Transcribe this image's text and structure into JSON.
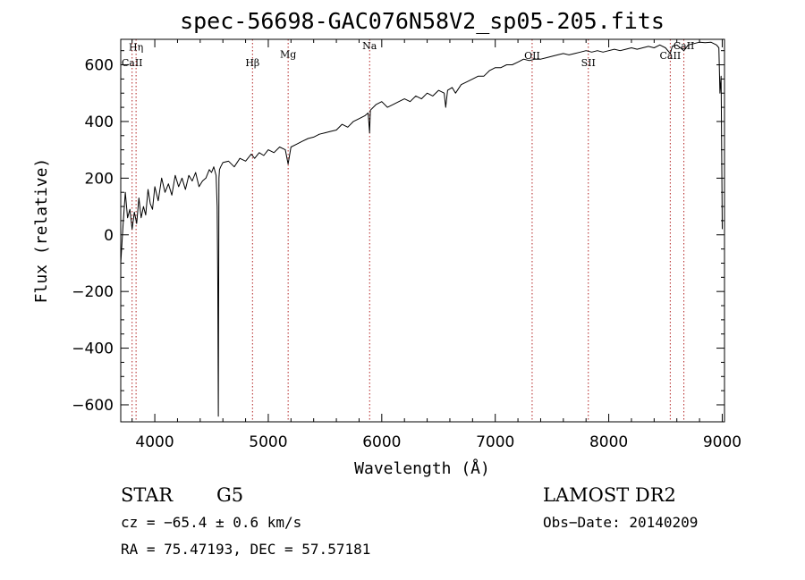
{
  "chart_data": {
    "type": "line",
    "title": "spec-56698-GAC076N58V2_sp05-205.fits",
    "xlabel": "Wavelength (Å)",
    "ylabel": "Flux (relative)",
    "xlim": [
      3700,
      9020
    ],
    "ylim": [
      -660,
      690
    ],
    "xticks": [
      4000,
      5000,
      6000,
      7000,
      8000,
      9000
    ],
    "yticks": [
      -600,
      -400,
      -200,
      0,
      200,
      400,
      600
    ],
    "grid": false,
    "line_color": "#000000",
    "marker_color": "#b22222",
    "lines": [
      {
        "label": "CaII",
        "x": 3800,
        "label_y": 595
      },
      {
        "label": "Hη",
        "x": 3835,
        "label_y": 650
      },
      {
        "label": "Hβ",
        "x": 4861,
        "label_y": 595
      },
      {
        "label": "Mg",
        "x": 5175,
        "label_y": 625
      },
      {
        "label": "Na",
        "x": 5893,
        "label_y": 655
      },
      {
        "label": "OII",
        "x": 7325,
        "label_y": 620
      },
      {
        "label": "SII",
        "x": 7820,
        "label_y": 595
      },
      {
        "label": "CaII",
        "x": 8542,
        "label_y": 620
      },
      {
        "label": "CaII",
        "x": 8662,
        "label_y": 655
      }
    ],
    "series": [
      {
        "x": [
          3700,
          3720,
          3740,
          3760,
          3780,
          3800,
          3820,
          3840,
          3860,
          3880,
          3900,
          3920,
          3940,
          3960,
          3980,
          4000,
          4030,
          4060,
          4090,
          4120,
          4150,
          4180,
          4210,
          4240,
          4270,
          4300,
          4330,
          4360,
          4390,
          4420,
          4450,
          4480,
          4500,
          4520,
          4540,
          4550,
          4555,
          4560,
          4565,
          4570,
          4580,
          4600,
          4650,
          4700,
          4750,
          4800,
          4850,
          4880,
          4920,
          4960,
          5000,
          5050,
          5100,
          5150,
          5175,
          5200,
          5250,
          5300,
          5350,
          5400,
          5450,
          5500,
          5550,
          5600,
          5650,
          5700,
          5750,
          5800,
          5850,
          5880,
          5893,
          5900,
          5950,
          6000,
          6050,
          6100,
          6150,
          6200,
          6250,
          6300,
          6350,
          6400,
          6450,
          6500,
          6550,
          6563,
          6580,
          6620,
          6650,
          6700,
          6750,
          6800,
          6850,
          6900,
          6950,
          7000,
          7050,
          7100,
          7150,
          7200,
          7250,
          7300,
          7350,
          7400,
          7450,
          7500,
          7550,
          7600,
          7650,
          7700,
          7750,
          7800,
          7850,
          7900,
          7950,
          8000,
          8050,
          8100,
          8150,
          8200,
          8250,
          8300,
          8350,
          8400,
          8450,
          8500,
          8542,
          8560,
          8600,
          8662,
          8700,
          8750,
          8800,
          8850,
          8900,
          8950,
          8970,
          8980,
          8990,
          9000
        ],
        "y": [
          -100,
          30,
          150,
          60,
          90,
          20,
          80,
          40,
          130,
          60,
          100,
          70,
          160,
          110,
          90,
          170,
          120,
          200,
          150,
          180,
          140,
          210,
          170,
          200,
          160,
          210,
          190,
          220,
          170,
          190,
          200,
          230,
          220,
          240,
          210,
          100,
          -180,
          -640,
          200,
          230,
          240,
          255,
          260,
          240,
          270,
          260,
          285,
          270,
          290,
          280,
          300,
          290,
          310,
          300,
          250,
          310,
          320,
          330,
          340,
          345,
          355,
          360,
          365,
          370,
          390,
          380,
          400,
          410,
          420,
          430,
          360,
          440,
          460,
          470,
          450,
          460,
          470,
          480,
          470,
          490,
          480,
          500,
          490,
          510,
          500,
          450,
          510,
          520,
          500,
          530,
          540,
          550,
          560,
          560,
          580,
          590,
          590,
          600,
          600,
          610,
          620,
          615,
          620,
          620,
          625,
          630,
          635,
          640,
          635,
          640,
          645,
          650,
          645,
          650,
          645,
          650,
          655,
          650,
          655,
          660,
          655,
          660,
          665,
          660,
          670,
          660,
          640,
          665,
          670,
          650,
          670,
          675,
          680,
          678,
          680,
          670,
          660,
          500,
          560,
          20
        ]
      }
    ]
  },
  "footer": {
    "class_label": "STAR",
    "subclass": "G5",
    "survey": "LAMOST DR2",
    "velocity": "cz = −65.4 ± 0.6 km/s",
    "obs_date": "Obs−Date: 20140209",
    "coords": "RA =  75.47193, DEC =  57.57181"
  }
}
